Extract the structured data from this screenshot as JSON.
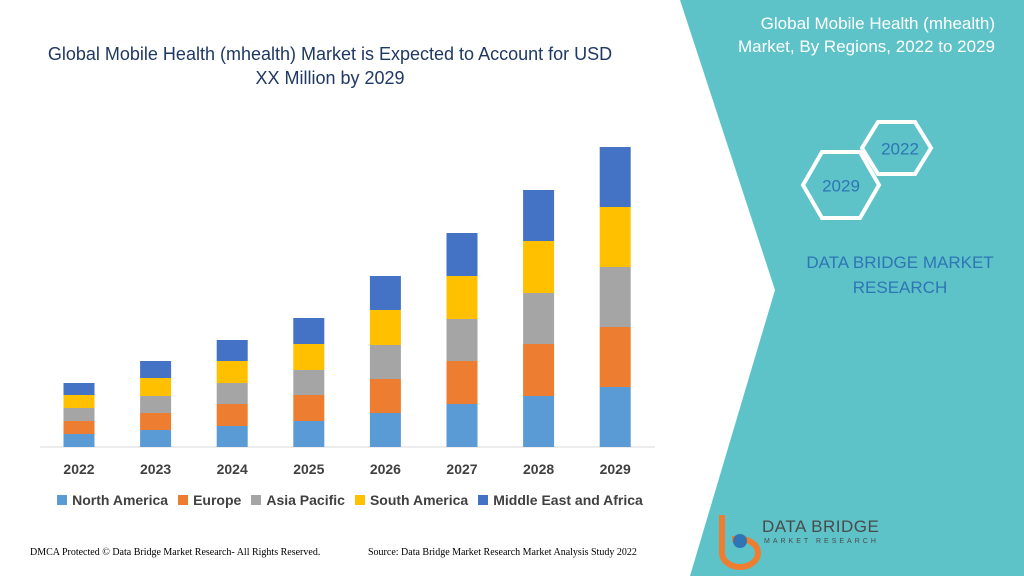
{
  "chart_data": {
    "type": "stacked_bar",
    "title": "Global Mobile Health (mhealth) Market is Expected to Account for USD XX Million by 2029",
    "categories": [
      "2022",
      "2023",
      "2024",
      "2025",
      "2026",
      "2027",
      "2028",
      "2029"
    ],
    "series": [
      {
        "name": "North America",
        "color": "#5b9bd5",
        "values": [
          13,
          17,
          21,
          26,
          34,
          43,
          51,
          60
        ]
      },
      {
        "name": "Europe",
        "color": "#ed7d31",
        "values": [
          13,
          17,
          22,
          26,
          34,
          43,
          52,
          60
        ]
      },
      {
        "name": "Asia Pacific",
        "color": "#a5a5a5",
        "values": [
          13,
          17,
          21,
          25,
          34,
          42,
          51,
          60
        ]
      },
      {
        "name": "South America",
        "color": "#ffc000",
        "values": [
          13,
          18,
          22,
          26,
          35,
          43,
          52,
          60
        ]
      },
      {
        "name": "Middle East and Africa",
        "color": "#4472c4",
        "values": [
          12,
          17,
          21,
          26,
          34,
          43,
          51,
          60
        ]
      }
    ],
    "ylim": [
      0,
      300
    ]
  },
  "side_panel": {
    "title": "Global Mobile Health (mhealth) Market, By Regions, 2022 to 2029",
    "badges": [
      "2022",
      "2029"
    ],
    "brand": "DATA BRIDGE MARKET RESEARCH"
  },
  "logo": {
    "name": "DATA BRIDGE",
    "tagline": "MARKET RESEARCH"
  },
  "footer": {
    "left": "DMCA Protected © Data Bridge Market Research- All Rights Reserved.",
    "right": "Source: Data Bridge Market Research Market Analysis Study 2022"
  }
}
